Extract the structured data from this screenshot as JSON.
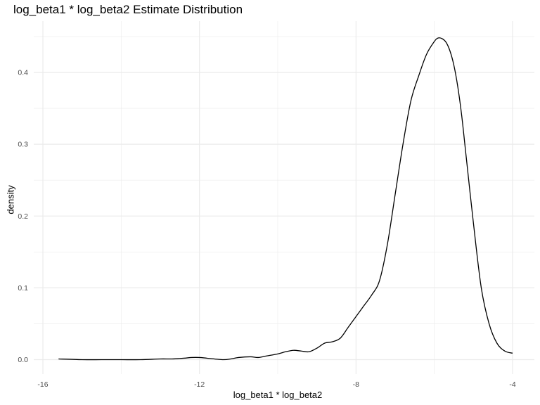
{
  "chart_data": {
    "type": "line",
    "title": "log_beta1 * log_beta2 Estimate Distribution",
    "xlabel": "log_beta1 * log_beta2",
    "ylabel": "density",
    "xlim": [
      -16,
      -4
    ],
    "ylim": [
      0,
      0.45
    ],
    "x_ticks": [
      -16,
      -12,
      -8,
      -4
    ],
    "x_tick_labels": [
      "-16",
      "-12",
      "-8",
      "-4"
    ],
    "y_ticks": [
      0,
      0.1,
      0.2,
      0.3,
      0.4
    ],
    "y_tick_labels": [
      "0.0",
      "0.1",
      "0.2",
      "0.3",
      "0.4"
    ],
    "grid": true,
    "legend": "none",
    "line_color": "#000000",
    "grid_color": "#ebebeb",
    "series": [
      {
        "x": [
          -15.6,
          -15.0,
          -14.5,
          -14.0,
          -13.5,
          -13.0,
          -12.7,
          -12.4,
          -12.2,
          -12.0,
          -11.8,
          -11.4,
          -11.2,
          -11.0,
          -10.7,
          -10.5,
          -10.3,
          -10.0,
          -9.8,
          -9.6,
          -9.4,
          -9.2,
          -9.0,
          -8.8,
          -8.6,
          -8.4,
          -8.2,
          -8.0,
          -7.8,
          -7.6,
          -7.4,
          -7.2,
          -7.0,
          -6.8,
          -6.6,
          -6.4,
          -6.2,
          -6.0,
          -5.9,
          -5.8,
          -5.7,
          -5.6,
          -5.5,
          -5.4,
          -5.3,
          -5.2,
          -5.0,
          -4.8,
          -4.6,
          -4.4,
          -4.2,
          -4.0
        ],
        "y": [
          0.001,
          0.0,
          0.0,
          0.0,
          0.0,
          0.001,
          0.001,
          0.002,
          0.003,
          0.003,
          0.002,
          0.0,
          0.001,
          0.003,
          0.004,
          0.003,
          0.005,
          0.008,
          0.011,
          0.013,
          0.012,
          0.011,
          0.016,
          0.023,
          0.025,
          0.03,
          0.045,
          0.06,
          0.075,
          0.09,
          0.11,
          0.16,
          0.23,
          0.3,
          0.36,
          0.395,
          0.425,
          0.443,
          0.448,
          0.447,
          0.442,
          0.43,
          0.41,
          0.38,
          0.34,
          0.29,
          0.19,
          0.1,
          0.05,
          0.023,
          0.012,
          0.009
        ]
      }
    ]
  }
}
